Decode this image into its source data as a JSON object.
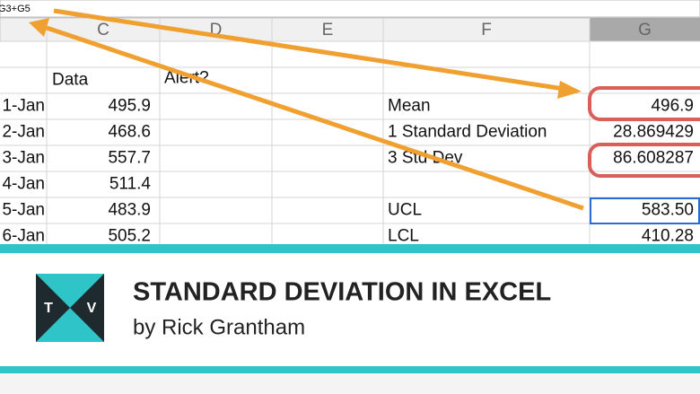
{
  "formula_bar": "G3+G5",
  "column_headers": [
    "C",
    "D",
    "E",
    "F",
    "G"
  ],
  "header_row": {
    "data": "Data",
    "alert": "Alert?"
  },
  "rows": [
    {
      "date": "1-Jan",
      "value": "495.9",
      "label": "Mean",
      "result": "496.9"
    },
    {
      "date": "2-Jan",
      "value": "468.6",
      "label": "1 Standard Deviation",
      "result": "28.869429"
    },
    {
      "date": "3-Jan",
      "value": "557.7",
      "label": "3 Std Dev",
      "result": "86.608287"
    },
    {
      "date": "4-Jan",
      "value": "511.4"
    },
    {
      "date": "5-Jan",
      "value": "483.9",
      "label": "UCL",
      "result": "583.50"
    },
    {
      "date": "6-Jan",
      "value": "505.2",
      "label": "LCL",
      "result": "410.28"
    }
  ],
  "banner": {
    "logo_left": "T",
    "logo_right": "V",
    "title": "STANDARD DEVIATION IN EXCEL",
    "byline": "by Rick Grantham"
  }
}
